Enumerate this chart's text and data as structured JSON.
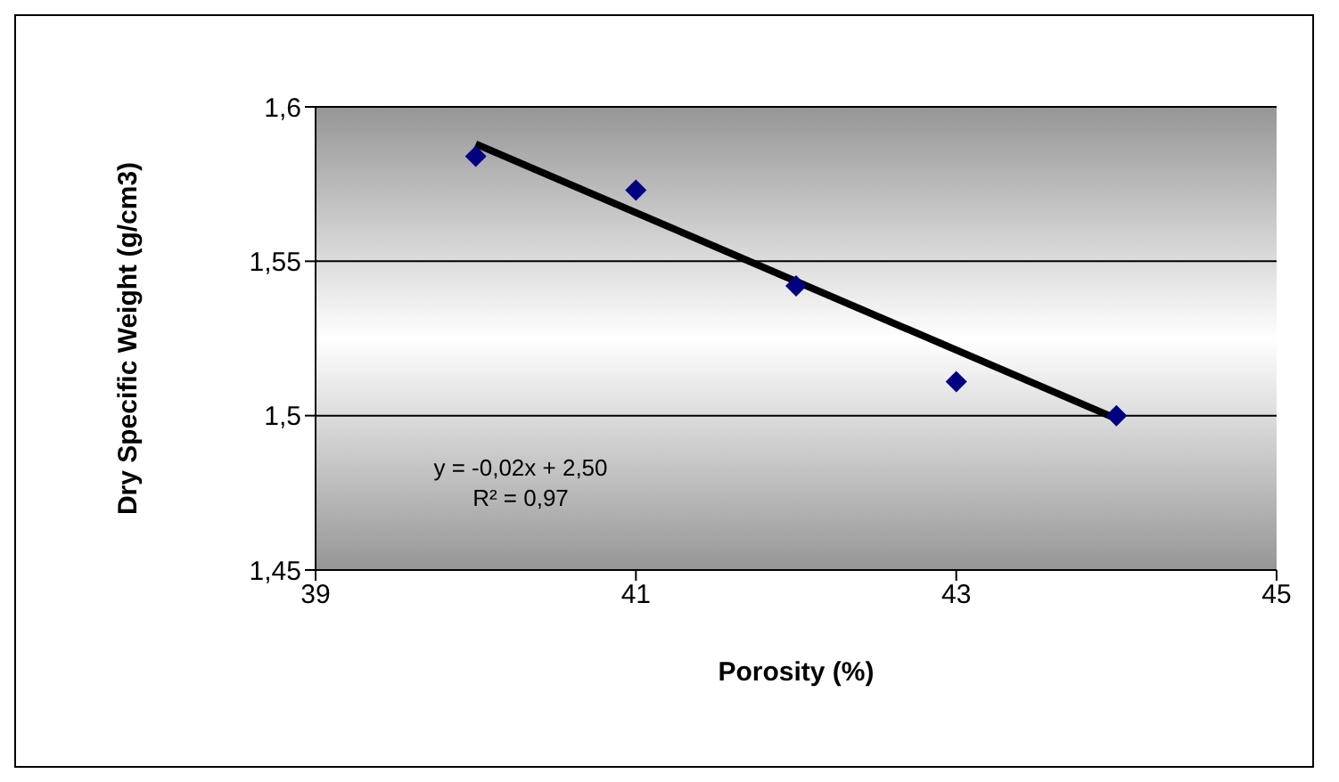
{
  "chart_data": {
    "type": "scatter",
    "xlabel": "Porosity  (%)",
    "ylabel": "Dry  Specific Weight (g/cm3)",
    "x": [
      40,
      41,
      42,
      43,
      44
    ],
    "series": [
      {
        "color": "#000080",
        "marker": "diamond",
        "values": [
          1.584,
          1.573,
          1.542,
          1.511,
          1.5
        ]
      },
      {
        "type": "line",
        "color": "#000000",
        "marker": "none",
        "x": [
          40,
          44
        ],
        "values": [
          1.588,
          1.499
        ]
      }
    ],
    "xlim": [
      39,
      45
    ],
    "xticks": [
      39,
      41,
      43,
      45
    ],
    "ylim": [
      1.45,
      1.6
    ],
    "yticks": [
      {
        "value": 1.45,
        "label": "1,45"
      },
      {
        "value": 1.5,
        "label": "1,5"
      },
      {
        "value": 1.55,
        "label": "1,55"
      },
      {
        "value": 1.6,
        "label": "1,6"
      }
    ],
    "grid": "y",
    "line_style": "solid",
    "annotations": [
      "y = -0,02x + 2,50",
      "R² = 0,97"
    ]
  }
}
